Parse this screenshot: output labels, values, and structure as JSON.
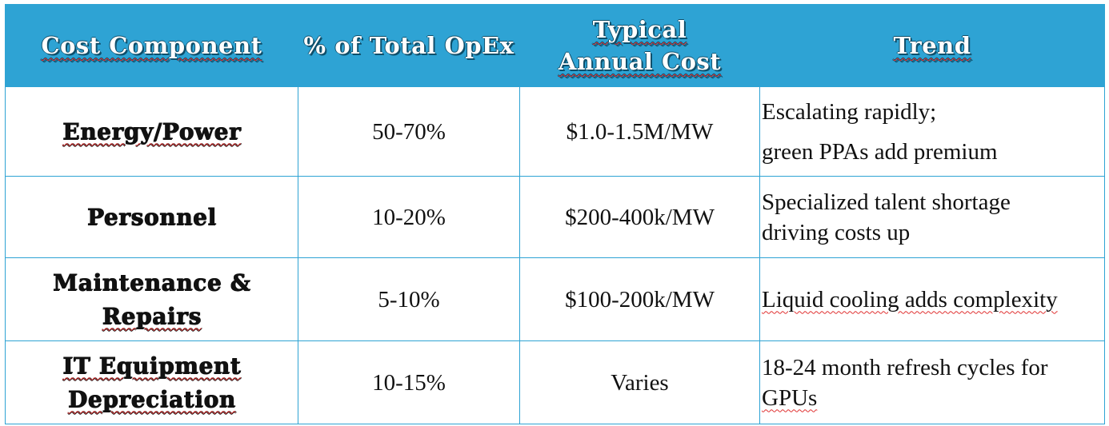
{
  "header": {
    "col1": "Cost Component",
    "col2": "% of Total OpEx",
    "col3_line1": "Typical",
    "col3_line2": "Annual Cost",
    "col4": "Trend"
  },
  "rows": [
    {
      "component_line1": "Energy/Power",
      "component_line2": "",
      "percent": "50-70%",
      "cost": "$1.0-1.5M/MW",
      "trend_line1": "Escalating rapidly;",
      "trend_line2": "green PPAs add premium"
    },
    {
      "component_line1": "Personnel",
      "component_line2": "",
      "percent": "10-20%",
      "cost": "$200-400k/MW",
      "trend_line1": "Specialized talent shortage",
      "trend_line2": "driving costs up"
    },
    {
      "component_line1": "Maintenance &",
      "component_line2": "Repairs",
      "percent": "5-10%",
      "cost": "$100-200k/MW",
      "trend_line1": "Liquid cooling adds complexity",
      "trend_line2": ""
    },
    {
      "component_line1": "IT Equipment",
      "component_line2": "Depreciation",
      "percent": "10-15%",
      "cost": "Varies",
      "trend_line1": "18-24 month refresh cycles for",
      "trend_line2": "GPUs"
    }
  ],
  "colors": {
    "header_bg": "#2ea3d4",
    "border": "#2ea3d4",
    "spellcheck_underline": "#e03030"
  }
}
